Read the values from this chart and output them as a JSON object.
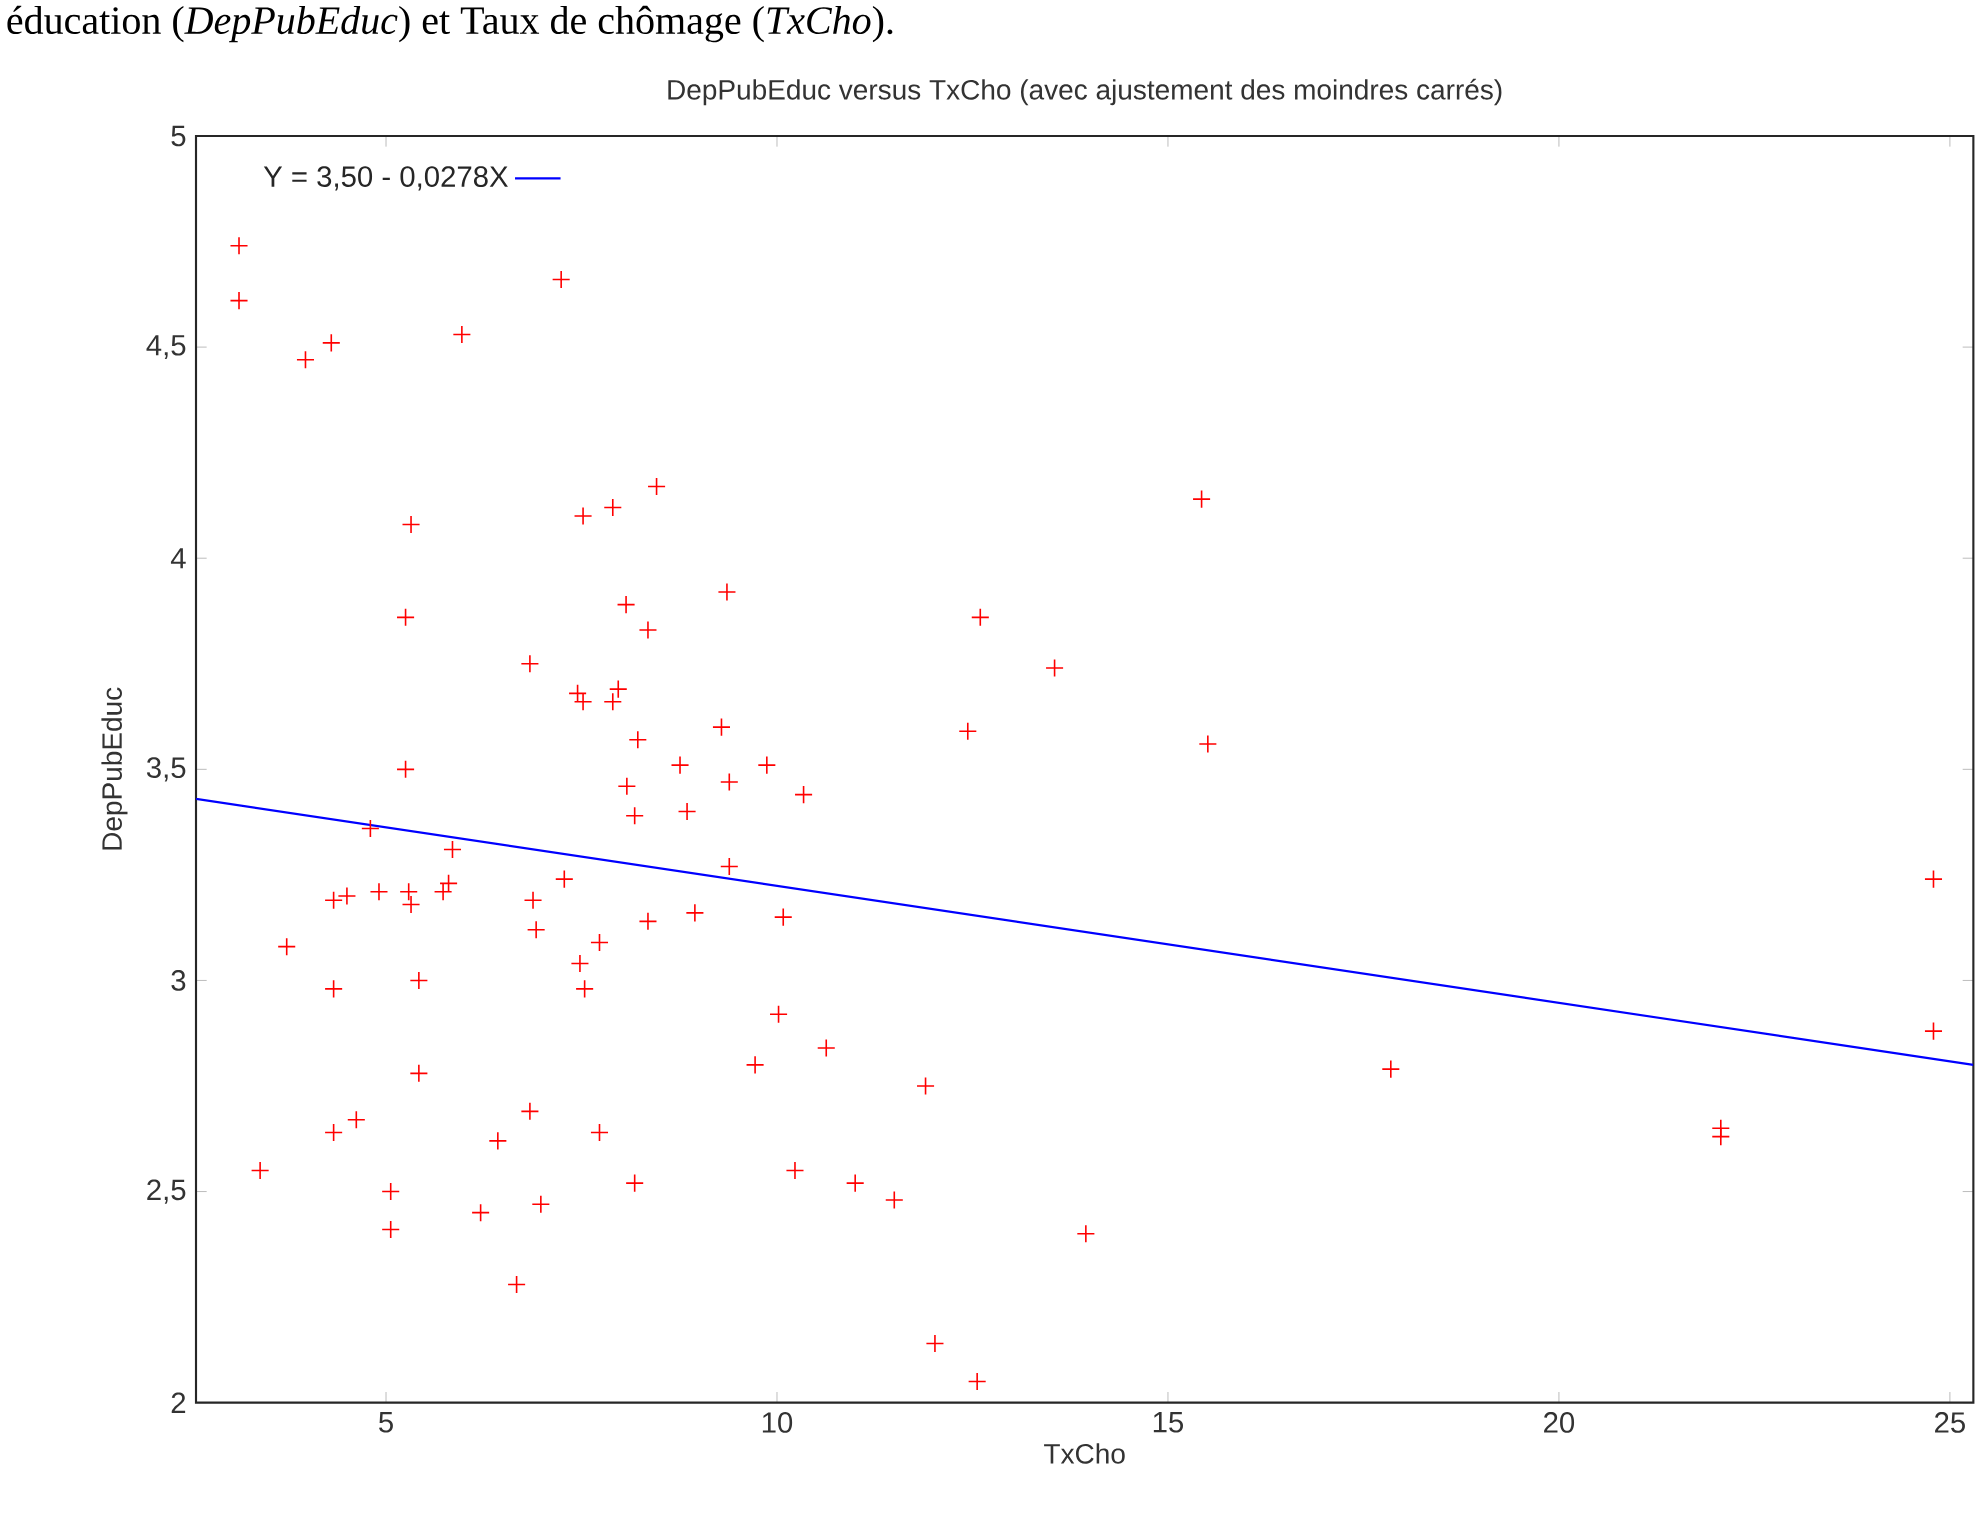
{
  "chart_data": {
    "type": "scatter",
    "title": "DepPubEduc versus TxCho (avec ajustement des moindres carrés)",
    "xlabel": "TxCho",
    "ylabel": "DepPubEduc",
    "annotations": [
      "éducation (*DepPubEduc*) et Taux de chômage (*TxCho*)."
    ],
    "xlim": [
      2.57,
      25.3
    ],
    "ylim": [
      2,
      5
    ],
    "xticks": [
      5,
      10,
      15,
      20,
      25
    ],
    "yticks": [
      2,
      {
        "value": 2.5,
        "label": "2,5"
      },
      3,
      {
        "value": 3.5,
        "label": "3,5"
      },
      4,
      {
        "value": 4.5,
        "label": "4,5"
      },
      5
    ],
    "legend": "top left",
    "series": [
      {
        "color": "#ff0000",
        "marker": "cross",
        "x": [
          3.12,
          3.12,
          3.97,
          4.3,
          5.97,
          7.24,
          5.32,
          7.52,
          7.9,
          8.46,
          5.25,
          9.36,
          8.07,
          8.35,
          6.84,
          7.45,
          7.52,
          7.97,
          7.9,
          8.22,
          9.29,
          5.25,
          8.76,
          9.87,
          8.08,
          9.39,
          10.34,
          8.18,
          8.85,
          4.8,
          5.85,
          9.39,
          7.28,
          4.33,
          4.5,
          4.91,
          5.29,
          5.32,
          5.73,
          5.8,
          6.88,
          6.92,
          8.35,
          8.95,
          10.08,
          3.73,
          7.48,
          7.73,
          7.54,
          4.33,
          5.42,
          10.02,
          10.63,
          9.72,
          5.42,
          6.84,
          4.62,
          4.33,
          7.73,
          6.43,
          3.39,
          10.23,
          5.06,
          8.18,
          11.0,
          11.5,
          6.98,
          6.21,
          5.06,
          6.67,
          11.9,
          15.43,
          12.6,
          13.55,
          12.44,
          15.51,
          24.79,
          24.79,
          17.85,
          22.07,
          22.07,
          13.95,
          12.02,
          12.56
        ],
        "values": [
          4.74,
          4.61,
          4.47,
          4.51,
          4.53,
          4.66,
          4.08,
          4.1,
          4.12,
          4.17,
          3.86,
          3.92,
          3.89,
          3.83,
          3.75,
          3.68,
          3.66,
          3.69,
          3.66,
          3.57,
          3.6,
          3.5,
          3.51,
          3.51,
          3.46,
          3.47,
          3.44,
          3.39,
          3.4,
          3.36,
          3.31,
          3.27,
          3.24,
          3.19,
          3.2,
          3.21,
          3.21,
          3.18,
          3.21,
          3.23,
          3.19,
          3.12,
          3.14,
          3.16,
          3.15,
          3.08,
          3.04,
          3.09,
          2.98,
          2.98,
          3.0,
          2.92,
          2.84,
          2.8,
          2.78,
          2.69,
          2.67,
          2.64,
          2.64,
          2.62,
          2.55,
          2.55,
          2.5,
          2.52,
          2.52,
          2.48,
          2.47,
          2.45,
          2.41,
          2.28,
          2.75,
          4.14,
          3.86,
          3.74,
          3.59,
          3.56,
          3.24,
          2.88,
          2.79,
          2.65,
          2.63,
          2.4,
          2.14,
          2.05
        ]
      },
      {
        "type": "line",
        "name": "Y = 3,50 - 0,0278X",
        "color": "#0000ff",
        "marker": "none",
        "x": [
          2.57,
          25.3
        ],
        "values": [
          3.43,
          2.8
        ]
      }
    ]
  }
}
